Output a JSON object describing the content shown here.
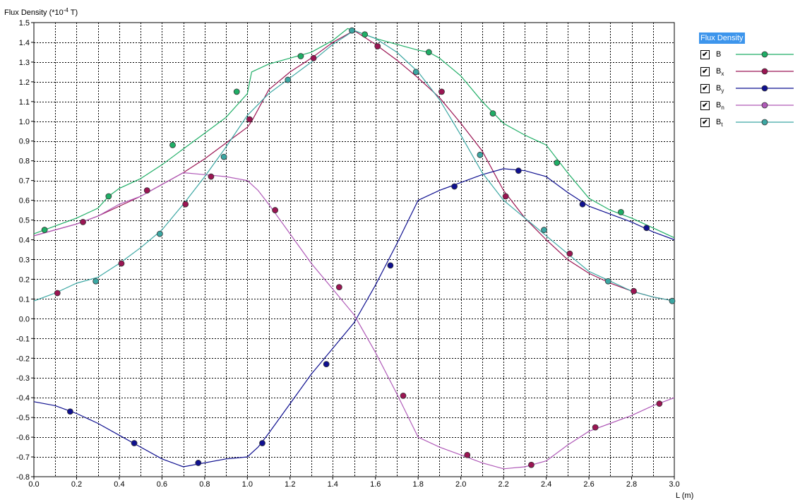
{
  "chart_data": {
    "type": "line",
    "ylabel": "Flux Density (*10-4 T)",
    "ylabel_parts": {
      "base": "Flux Density (*10",
      "sup": "-4",
      "unit": " T)"
    },
    "xlabel": "L (m)",
    "xlim": [
      0.0,
      3.0
    ],
    "ylim": [
      -0.8,
      1.5
    ],
    "xticks": [
      "0.0",
      "0.2",
      "0.4",
      "0.6",
      "0.8",
      "1.0",
      "1.2",
      "1.4",
      "1.6",
      "1.8",
      "2.0",
      "2.2",
      "2.4",
      "2.6",
      "2.8",
      "3.0"
    ],
    "yticks": [
      "1.5",
      "1.4",
      "1.3",
      "1.2",
      "1.1",
      "1.0",
      "0.9",
      "0.8",
      "0.7",
      "0.6",
      "0.5",
      "0.4",
      "0.3",
      "0.2",
      "0.1",
      "0.0",
      "-0.1",
      "-0.2",
      "-0.3",
      "-0.4",
      "-0.5",
      "-0.6",
      "-0.7",
      "-0.8"
    ],
    "grid": true,
    "legend_position": "right",
    "legend_title": "Flux Density",
    "series": [
      {
        "name": "B",
        "sub": "",
        "color": "#1fae66",
        "x": [
          0.0,
          0.2,
          0.3,
          0.35,
          0.4,
          0.5,
          0.6,
          0.7,
          0.8,
          0.9,
          0.95,
          1.0,
          1.02,
          1.1,
          1.2,
          1.3,
          1.4,
          1.47,
          1.5,
          1.6,
          1.7,
          1.8,
          1.85,
          1.9,
          2.0,
          2.1,
          2.2,
          2.3,
          2.4,
          2.5,
          2.6,
          2.7,
          2.8,
          2.9,
          3.0
        ],
        "y": [
          0.43,
          0.51,
          0.56,
          0.62,
          0.66,
          0.71,
          0.78,
          0.86,
          0.94,
          1.02,
          1.08,
          1.14,
          1.25,
          1.29,
          1.32,
          1.35,
          1.41,
          1.47,
          1.46,
          1.42,
          1.39,
          1.36,
          1.35,
          1.32,
          1.23,
          1.1,
          0.99,
          0.93,
          0.88,
          0.74,
          0.61,
          0.55,
          0.51,
          0.46,
          0.41
        ],
        "markers_x": [
          0.05,
          0.35,
          0.65,
          0.95,
          1.25,
          1.55,
          1.85,
          2.15,
          2.45,
          2.75
        ],
        "markers_y": [
          0.45,
          0.62,
          0.88,
          1.15,
          1.33,
          1.44,
          1.35,
          1.04,
          0.79,
          0.54
        ]
      },
      {
        "name": "B",
        "sub": "x",
        "color": "#9b1553",
        "x": [
          0.0,
          0.1,
          0.2,
          0.3,
          0.4,
          0.5,
          0.6,
          0.7,
          0.8,
          0.9,
          1.0,
          1.02,
          1.1,
          1.2,
          1.3,
          1.4,
          1.5,
          1.6,
          1.7,
          1.8,
          1.9,
          2.0,
          2.1,
          2.2,
          2.3,
          2.4,
          2.5,
          2.6,
          2.7,
          2.8,
          2.9,
          3.0
        ],
        "y": [
          0.42,
          0.45,
          0.48,
          0.52,
          0.57,
          0.62,
          0.68,
          0.74,
          0.81,
          0.89,
          0.97,
          1.0,
          1.16,
          1.25,
          1.32,
          1.4,
          1.46,
          1.39,
          1.31,
          1.22,
          1.12,
          0.99,
          0.85,
          0.65,
          0.51,
          0.4,
          0.3,
          0.23,
          0.18,
          0.14,
          0.11,
          0.09
        ],
        "markers_x": [
          0.11,
          0.23,
          0.41,
          0.53,
          0.71,
          0.83,
          1.01,
          1.13,
          1.31,
          1.43,
          1.61,
          1.73,
          1.91,
          2.03,
          2.21,
          2.33,
          2.51,
          2.63,
          2.81,
          2.93
        ],
        "markers_y": [
          0.13,
          0.49,
          0.28,
          0.65,
          0.58,
          0.72,
          1.01,
          0.55,
          1.32,
          0.16,
          1.38,
          -0.39,
          1.15,
          -0.69,
          0.62,
          -0.74,
          0.33,
          -0.55,
          0.14,
          -0.43
        ]
      },
      {
        "name": "B",
        "sub": "y",
        "color": "#0f1090",
        "x": [
          0.0,
          0.1,
          0.2,
          0.3,
          0.4,
          0.5,
          0.6,
          0.7,
          0.8,
          0.9,
          1.0,
          1.05,
          1.1,
          1.2,
          1.3,
          1.4,
          1.5,
          1.6,
          1.7,
          1.8,
          1.9,
          2.0,
          2.1,
          2.2,
          2.3,
          2.4,
          2.5,
          2.6,
          2.7,
          2.8,
          2.9,
          3.0
        ],
        "y": [
          -0.42,
          -0.44,
          -0.48,
          -0.53,
          -0.59,
          -0.65,
          -0.71,
          -0.75,
          -0.73,
          -0.71,
          -0.7,
          -0.65,
          -0.58,
          -0.43,
          -0.28,
          -0.15,
          -0.02,
          0.17,
          0.38,
          0.6,
          0.65,
          0.69,
          0.73,
          0.76,
          0.75,
          0.72,
          0.64,
          0.57,
          0.53,
          0.49,
          0.44,
          0.4
        ],
        "markers_x": [
          0.17,
          0.47,
          0.77,
          1.07,
          1.37,
          1.67,
          1.97,
          2.27,
          2.57,
          2.87
        ],
        "markers_y": [
          -0.47,
          -0.63,
          -0.73,
          -0.63,
          -0.23,
          0.27,
          0.67,
          0.75,
          0.58,
          0.46
        ]
      },
      {
        "name": "B",
        "sub": "n",
        "color": "#b05ab8",
        "x": [
          0.0,
          0.1,
          0.2,
          0.3,
          0.4,
          0.5,
          0.6,
          0.7,
          0.8,
          0.9,
          1.0,
          1.05,
          1.1,
          1.2,
          1.3,
          1.4,
          1.5,
          1.6,
          1.7,
          1.8,
          1.9,
          2.0,
          2.1,
          2.2,
          2.3,
          2.4,
          2.5,
          2.6,
          2.7,
          2.8,
          2.9,
          3.0
        ],
        "y": [
          0.42,
          0.45,
          0.48,
          0.52,
          0.58,
          0.62,
          0.68,
          0.74,
          0.73,
          0.72,
          0.7,
          0.65,
          0.58,
          0.43,
          0.28,
          0.15,
          0.02,
          -0.17,
          -0.38,
          -0.6,
          -0.65,
          -0.69,
          -0.73,
          -0.76,
          -0.75,
          -0.72,
          -0.64,
          -0.57,
          -0.53,
          -0.49,
          -0.44,
          -0.4
        ]
      },
      {
        "name": "B",
        "sub": "t",
        "color": "#3ca7a3",
        "x": [
          0.0,
          0.1,
          0.2,
          0.3,
          0.4,
          0.5,
          0.6,
          0.7,
          0.8,
          0.9,
          1.0,
          1.1,
          1.2,
          1.3,
          1.4,
          1.5,
          1.6,
          1.7,
          1.8,
          1.9,
          2.0,
          2.1,
          2.2,
          2.3,
          2.4,
          2.5,
          2.6,
          2.7,
          2.8,
          2.9,
          3.0
        ],
        "y": [
          0.09,
          0.13,
          0.18,
          0.21,
          0.28,
          0.36,
          0.45,
          0.58,
          0.72,
          0.87,
          1.03,
          1.14,
          1.22,
          1.3,
          1.39,
          1.46,
          1.42,
          1.35,
          1.25,
          1.11,
          0.93,
          0.74,
          0.6,
          0.51,
          0.42,
          0.33,
          0.24,
          0.19,
          0.14,
          0.11,
          0.09
        ],
        "markers_x": [
          0.29,
          0.59,
          0.89,
          1.19,
          1.49,
          1.79,
          2.09,
          2.39,
          2.69,
          2.99
        ],
        "markers_y": [
          0.19,
          0.43,
          0.82,
          1.21,
          1.46,
          1.25,
          0.83,
          0.45,
          0.19,
          0.09
        ]
      }
    ]
  }
}
